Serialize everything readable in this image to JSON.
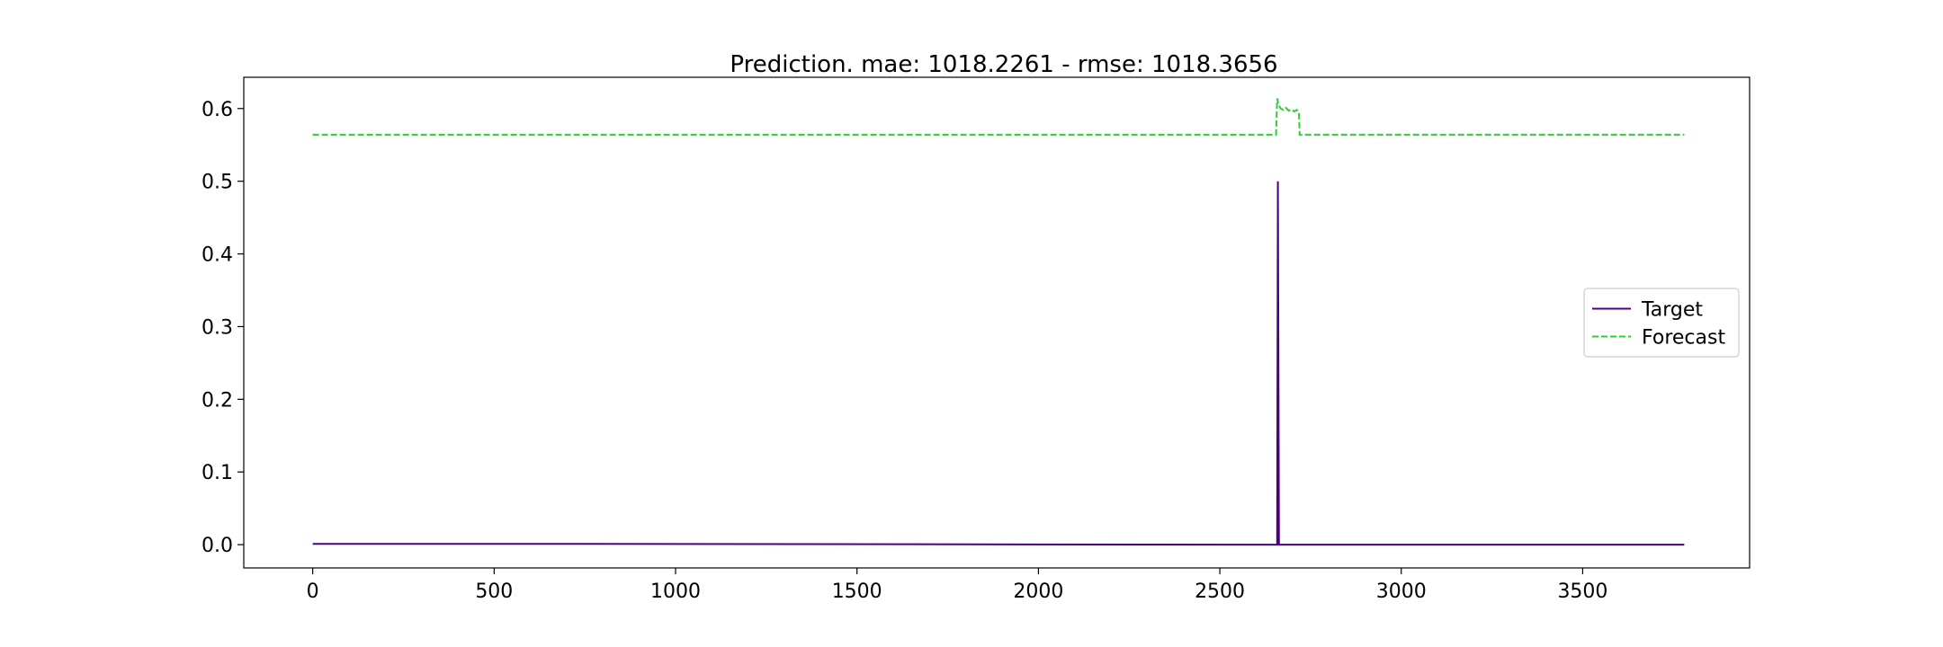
{
  "chart_data": {
    "type": "line",
    "title": "Prediction. mae: 1018.2261 - rmse: 1018.3656",
    "xlabel": "",
    "ylabel": "",
    "xlim": [
      -190,
      3960
    ],
    "ylim": [
      -0.032,
      0.643
    ],
    "xticks": [
      0,
      500,
      1000,
      1500,
      2000,
      2500,
      3000,
      3500
    ],
    "xtick_labels": [
      "0",
      "500",
      "1000",
      "1500",
      "2000",
      "2500",
      "3000",
      "3500"
    ],
    "yticks": [
      0.0,
      0.1,
      0.2,
      0.3,
      0.4,
      0.5,
      0.6
    ],
    "ytick_labels": [
      "0.0",
      "0.1",
      "0.2",
      "0.3",
      "0.4",
      "0.5",
      "0.6"
    ],
    "grid": false,
    "legend": "center-right",
    "series": [
      {
        "name": "Target",
        "color": "#4b0082",
        "style": "solid",
        "x": [
          0,
          740,
          2655,
          2658,
          2660,
          2663,
          3780
        ],
        "y": [
          0.001,
          0.001,
          0.0,
          0.0,
          0.5,
          0.0,
          0.0
        ]
      },
      {
        "name": "Forecast",
        "color": "#32cd32",
        "style": "dashed",
        "x": [
          0,
          2655,
          2658,
          2662,
          2668,
          2675,
          2682,
          2690,
          2697,
          2705,
          2712,
          2718,
          2720,
          2722,
          3780
        ],
        "y": [
          0.564,
          0.564,
          0.614,
          0.605,
          0.6,
          0.598,
          0.601,
          0.597,
          0.599,
          0.596,
          0.598,
          0.595,
          0.564,
          0.564,
          0.564
        ]
      }
    ]
  }
}
